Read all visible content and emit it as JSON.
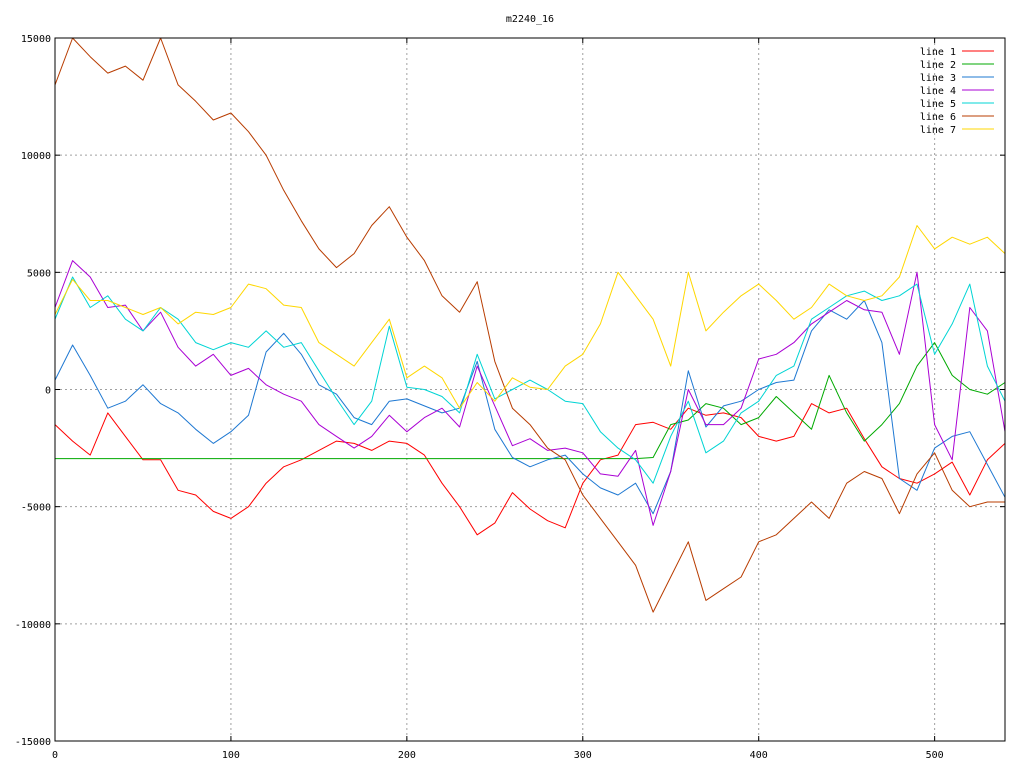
{
  "chart_data": {
    "type": "line",
    "title": "m2240_16",
    "xlabel": "",
    "ylabel": "",
    "xlim": [
      0,
      540
    ],
    "ylim": [
      -15000,
      15000
    ],
    "x_ticks": [
      0,
      100,
      200,
      300,
      400,
      500
    ],
    "y_ticks": [
      -15000,
      -10000,
      -5000,
      0,
      5000,
      10000,
      15000
    ],
    "grid": true,
    "legend_position": "top-right",
    "series": [
      {
        "name": "line 1",
        "color": "#ff0000",
        "x": [
          0,
          10,
          20,
          30,
          40,
          50,
          60,
          70,
          80,
          90,
          100,
          110,
          120,
          130,
          140,
          150,
          160,
          170,
          180,
          190,
          200,
          210,
          220,
          230,
          240,
          250,
          260,
          270,
          280,
          290,
          300,
          310,
          320,
          330,
          340,
          350,
          360,
          370,
          380,
          390,
          400,
          410,
          420,
          430,
          440,
          450,
          460,
          470,
          480,
          490,
          500,
          510,
          520,
          530,
          540
        ],
        "y": [
          -1500,
          -2200,
          -2800,
          -1000,
          -2000,
          -3000,
          -3000,
          -4300,
          -4500,
          -5200,
          -5500,
          -5000,
          -4000,
          -3300,
          -3000,
          -2600,
          -2200,
          -2300,
          -2600,
          -2200,
          -2300,
          -2800,
          -4000,
          -5000,
          -6200,
          -5700,
          -4400,
          -5100,
          -5600,
          -5900,
          -4000,
          -3000,
          -2800,
          -1500,
          -1400,
          -1700,
          -800,
          -1100,
          -1000,
          -1200,
          -2000,
          -2200,
          -2000,
          -600,
          -1000,
          -800,
          -2100,
          -3300,
          -3800,
          -4000,
          -3600,
          -3100,
          -4500,
          -3000,
          -2300
        ]
      },
      {
        "name": "line 2",
        "color": "#00aa00",
        "x": [
          0,
          10,
          20,
          30,
          40,
          50,
          60,
          70,
          80,
          90,
          100,
          110,
          120,
          130,
          140,
          150,
          160,
          170,
          180,
          190,
          200,
          210,
          220,
          230,
          240,
          250,
          260,
          270,
          280,
          290,
          300,
          310,
          320,
          330,
          340,
          350,
          360,
          370,
          380,
          390,
          400,
          410,
          420,
          430,
          440,
          450,
          460,
          470,
          480,
          490,
          500,
          510,
          520,
          530,
          540
        ],
        "y": [
          -2950,
          -2950,
          -2950,
          -2950,
          -2950,
          -2950,
          -2950,
          -2950,
          -2950,
          -2950,
          -2950,
          -2950,
          -2950,
          -2950,
          -2950,
          -2950,
          -2950,
          -2950,
          -2950,
          -2950,
          -2950,
          -2950,
          -2950,
          -2950,
          -2950,
          -2950,
          -2950,
          -2950,
          -2950,
          -2950,
          -2950,
          -2950,
          -2950,
          -2950,
          -2900,
          -1500,
          -1300,
          -600,
          -800,
          -1500,
          -1200,
          -300,
          -1000,
          -1700,
          600,
          -1000,
          -2200,
          -1500,
          -600,
          1000,
          2000,
          600,
          0,
          -200,
          300
        ]
      },
      {
        "name": "line 3",
        "color": "#1e78d2",
        "x": [
          0,
          10,
          20,
          30,
          40,
          50,
          60,
          70,
          80,
          90,
          100,
          110,
          120,
          130,
          140,
          150,
          160,
          170,
          180,
          190,
          200,
          210,
          220,
          230,
          240,
          250,
          260,
          270,
          280,
          290,
          300,
          310,
          320,
          330,
          340,
          350,
          360,
          370,
          380,
          390,
          400,
          410,
          420,
          430,
          440,
          450,
          460,
          470,
          480,
          490,
          500,
          510,
          520,
          530,
          540
        ],
        "y": [
          400,
          1900,
          600,
          -800,
          -500,
          200,
          -600,
          -1000,
          -1700,
          -2300,
          -1800,
          -1100,
          1600,
          2400,
          1500,
          200,
          -200,
          -1200,
          -1500,
          -500,
          -400,
          -700,
          -1000,
          -800,
          1200,
          -1700,
          -2900,
          -3300,
          -3000,
          -2800,
          -3600,
          -4200,
          -4500,
          -4000,
          -5300,
          -3500,
          800,
          -1600,
          -700,
          -500,
          0,
          300,
          400,
          2500,
          3400,
          3000,
          3800,
          2000,
          -3800,
          -4300,
          -2500,
          -2000,
          -1800,
          -3200,
          -4600
        ]
      },
      {
        "name": "line 4",
        "color": "#aa00d4",
        "x": [
          0,
          10,
          20,
          30,
          40,
          50,
          60,
          70,
          80,
          90,
          100,
          110,
          120,
          130,
          140,
          150,
          160,
          170,
          180,
          190,
          200,
          210,
          220,
          230,
          240,
          250,
          260,
          270,
          280,
          290,
          300,
          310,
          320,
          330,
          340,
          350,
          360,
          370,
          380,
          390,
          400,
          410,
          420,
          430,
          440,
          450,
          460,
          470,
          480,
          490,
          500,
          510,
          520,
          530,
          540
        ],
        "y": [
          3500,
          5500,
          4800,
          3500,
          3600,
          2500,
          3300,
          1800,
          1000,
          1500,
          600,
          900,
          200,
          -200,
          -500,
          -1500,
          -2000,
          -2500,
          -2000,
          -1100,
          -1800,
          -1200,
          -800,
          -1600,
          1000,
          -700,
          -2400,
          -2100,
          -2600,
          -2500,
          -2700,
          -3600,
          -3700,
          -2600,
          -5800,
          -3500,
          0,
          -1500,
          -1500,
          -800,
          1300,
          1500,
          2000,
          2800,
          3300,
          3800,
          3400,
          3300,
          1500,
          5000,
          -1500,
          -3000,
          3500,
          2500,
          -1800
        ]
      },
      {
        "name": "line 5",
        "color": "#00d4d4",
        "x": [
          0,
          10,
          20,
          30,
          40,
          50,
          60,
          70,
          80,
          90,
          100,
          110,
          120,
          130,
          140,
          150,
          160,
          170,
          180,
          190,
          200,
          210,
          220,
          230,
          240,
          250,
          260,
          270,
          280,
          290,
          300,
          310,
          320,
          330,
          340,
          350,
          360,
          370,
          380,
          390,
          400,
          410,
          420,
          430,
          440,
          450,
          460,
          470,
          480,
          490,
          500,
          510,
          520,
          530,
          540
        ],
        "y": [
          3000,
          4800,
          3500,
          4000,
          3000,
          2500,
          3500,
          3000,
          2000,
          1700,
          2000,
          1800,
          2500,
          1800,
          2000,
          800,
          -400,
          -1500,
          -500,
          2700,
          100,
          0,
          -300,
          -1000,
          1500,
          -400,
          0,
          400,
          0,
          -500,
          -600,
          -1800,
          -2500,
          -3000,
          -4000,
          -2000,
          -500,
          -2700,
          -2200,
          -1000,
          -500,
          600,
          1000,
          3000,
          3500,
          4000,
          4200,
          3800,
          4000,
          4500,
          1500,
          2800,
          4500,
          1000,
          -500
        ]
      },
      {
        "name": "line 6",
        "color": "#b83c00",
        "x": [
          0,
          10,
          20,
          30,
          40,
          50,
          60,
          70,
          80,
          90,
          100,
          110,
          120,
          130,
          140,
          150,
          160,
          170,
          180,
          190,
          200,
          210,
          220,
          230,
          240,
          250,
          260,
          270,
          280,
          290,
          300,
          310,
          320,
          330,
          340,
          350,
          360,
          370,
          380,
          390,
          400,
          410,
          420,
          430,
          440,
          450,
          460,
          470,
          480,
          490,
          500,
          510,
          520,
          530,
          540
        ],
        "y": [
          13000,
          15000,
          14200,
          13500,
          13800,
          13200,
          15000,
          13000,
          12300,
          11500,
          11800,
          11000,
          10000,
          8500,
          7200,
          6000,
          5200,
          5800,
          7000,
          7800,
          6500,
          5500,
          4000,
          3300,
          4600,
          1200,
          -800,
          -1500,
          -2500,
          -3000,
          -4500,
          -5500,
          -6500,
          -7500,
          -9500,
          -8000,
          -6500,
          -9000,
          -8500,
          -8000,
          -6500,
          -6200,
          -5500,
          -4800,
          -5500,
          -4000,
          -3500,
          -3800,
          -5300,
          -3600,
          -2700,
          -4300,
          -5000,
          -4800,
          -4800
        ]
      },
      {
        "name": "line 7",
        "color": "#ffd700",
        "x": [
          0,
          10,
          20,
          30,
          40,
          50,
          60,
          70,
          80,
          90,
          100,
          110,
          120,
          130,
          140,
          150,
          160,
          170,
          180,
          190,
          200,
          210,
          220,
          230,
          240,
          250,
          260,
          270,
          280,
          290,
          300,
          310,
          320,
          330,
          340,
          350,
          360,
          370,
          380,
          390,
          400,
          410,
          420,
          430,
          440,
          450,
          460,
          470,
          480,
          490,
          500,
          510,
          520,
          530,
          540
        ],
        "y": [
          3200,
          4700,
          3800,
          3800,
          3500,
          3200,
          3500,
          2800,
          3300,
          3200,
          3500,
          4500,
          4300,
          3600,
          3500,
          2000,
          1500,
          1000,
          2000,
          3000,
          500,
          1000,
          500,
          -800,
          300,
          -500,
          500,
          100,
          0,
          1000,
          1500,
          2800,
          5000,
          4000,
          3000,
          1000,
          5000,
          2500,
          3300,
          4000,
          4500,
          3800,
          3000,
          3500,
          4500,
          4000,
          3800,
          4000,
          4800,
          7000,
          6000,
          6500,
          6200,
          6500,
          5800
        ]
      }
    ]
  }
}
